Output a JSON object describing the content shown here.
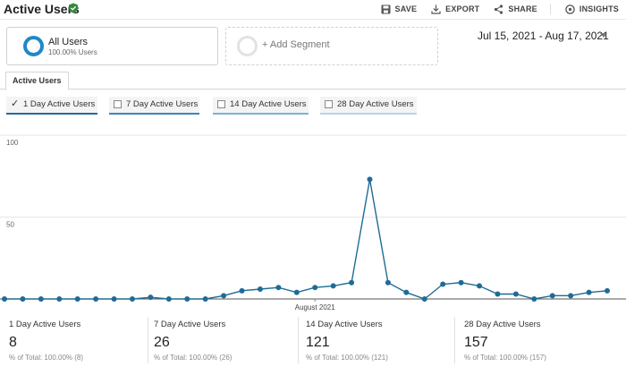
{
  "header": {
    "title": "Active Users",
    "actions": {
      "save": "SAVE",
      "export": "EXPORT",
      "share": "SHARE",
      "insights": "INSIGHTS"
    }
  },
  "segments": {
    "all_users": {
      "name": "All Users",
      "sub": "100.00% Users"
    },
    "add_segment": "+ Add Segment"
  },
  "date_range": "Jul 15, 2021 - Aug 17, 2021",
  "tab": "Active Users",
  "metric_toggles": [
    {
      "label": "1 Day Active Users",
      "checked": true,
      "color": "#2a6a9c"
    },
    {
      "label": "7 Day Active Users",
      "checked": false,
      "color": "#3b87c0"
    },
    {
      "label": "14 Day Active Users",
      "checked": false,
      "color": "#75b3da"
    },
    {
      "label": "28 Day Active Users",
      "checked": false,
      "color": "#b3d6ec"
    }
  ],
  "chart_data": {
    "type": "line",
    "series": [
      {
        "values": [
          0,
          0,
          0,
          0,
          0,
          0,
          0,
          0,
          1,
          0,
          0,
          0,
          2,
          5,
          6,
          7,
          4,
          7,
          8,
          10,
          73,
          10,
          4,
          0,
          9,
          10,
          8,
          3,
          3,
          0,
          2,
          2,
          4,
          5
        ]
      }
    ],
    "x_label": "August 2021",
    "x_label_index": 17,
    "ylim": [
      0,
      100
    ],
    "y_ticks": [
      "100",
      "50"
    ],
    "grid": "horizontal",
    "line_color": "#1f6b96"
  },
  "stats": [
    {
      "label": "1 Day Active Users",
      "value": "8",
      "total": "% of Total: 100.00% (8)"
    },
    {
      "label": "7 Day Active Users",
      "value": "26",
      "total": "% of Total: 100.00% (26)"
    },
    {
      "label": "14 Day Active Users",
      "value": "121",
      "total": "% of Total: 100.00% (121)"
    },
    {
      "label": "28 Day Active Users",
      "value": "157",
      "total": "% of Total: 100.00% (157)"
    }
  ]
}
